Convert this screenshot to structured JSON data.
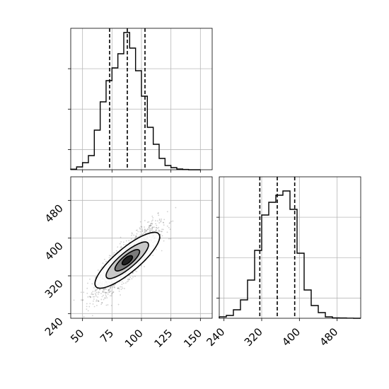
{
  "chart_data": [
    {
      "type": "histogram",
      "panel": "marginal-x",
      "bins_x": [
        40,
        45,
        50,
        55,
        60,
        65,
        70,
        75,
        80,
        85,
        90,
        95,
        100,
        105,
        110,
        115,
        120,
        125,
        130,
        135,
        140,
        145,
        150
      ],
      "counts": [
        0.4,
        2,
        5,
        10,
        28,
        48,
        63,
        72,
        82,
        97,
        86,
        70,
        52,
        30,
        18,
        8,
        3,
        1.5,
        0.5,
        0.2,
        0,
        0
      ],
      "xlim": [
        40,
        160
      ],
      "ylim": [
        0,
        100
      ],
      "x_ticks": [
        50,
        75,
        100,
        125,
        150
      ],
      "quantile_lines": [
        73,
        88,
        103
      ],
      "grid": true
    },
    {
      "type": "histogram",
      "panel": "marginal-y",
      "bins_x": [
        230,
        245,
        260,
        275,
        290,
        305,
        320,
        335,
        350,
        365,
        380,
        395,
        410,
        425,
        440,
        455,
        470,
        485,
        500,
        515,
        530
      ],
      "counts": [
        1,
        2,
        6,
        13,
        27,
        48,
        73,
        82,
        87,
        90,
        77,
        46,
        20,
        9,
        4,
        1,
        0.3,
        0.2,
        0.1,
        0
      ],
      "xlim": [
        230,
        530
      ],
      "ylim": [
        0,
        100
      ],
      "x_ticks": [
        240,
        320,
        400,
        480
      ],
      "x_tick_labels": [
        "240",
        "320",
        "400",
        "480"
      ],
      "quantile_lines": [
        316,
        353,
        390
      ],
      "grid": true
    },
    {
      "type": "scatter",
      "panel": "joint",
      "xlim": [
        40,
        160
      ],
      "ylim": [
        230,
        530
      ],
      "x_ticks": [
        50,
        75,
        100,
        125,
        150
      ],
      "x_tick_labels": [
        "50",
        "75",
        "100",
        "125",
        "150"
      ],
      "y_ticks": [
        240,
        320,
        400,
        480
      ],
      "y_tick_labels": [
        "240",
        "320",
        "400",
        "480"
      ],
      "grid": true,
      "center": [
        88,
        353
      ],
      "correlation": 0.85,
      "contour_levels": [
        "outer",
        "middle",
        "inner",
        "core"
      ]
    }
  ]
}
